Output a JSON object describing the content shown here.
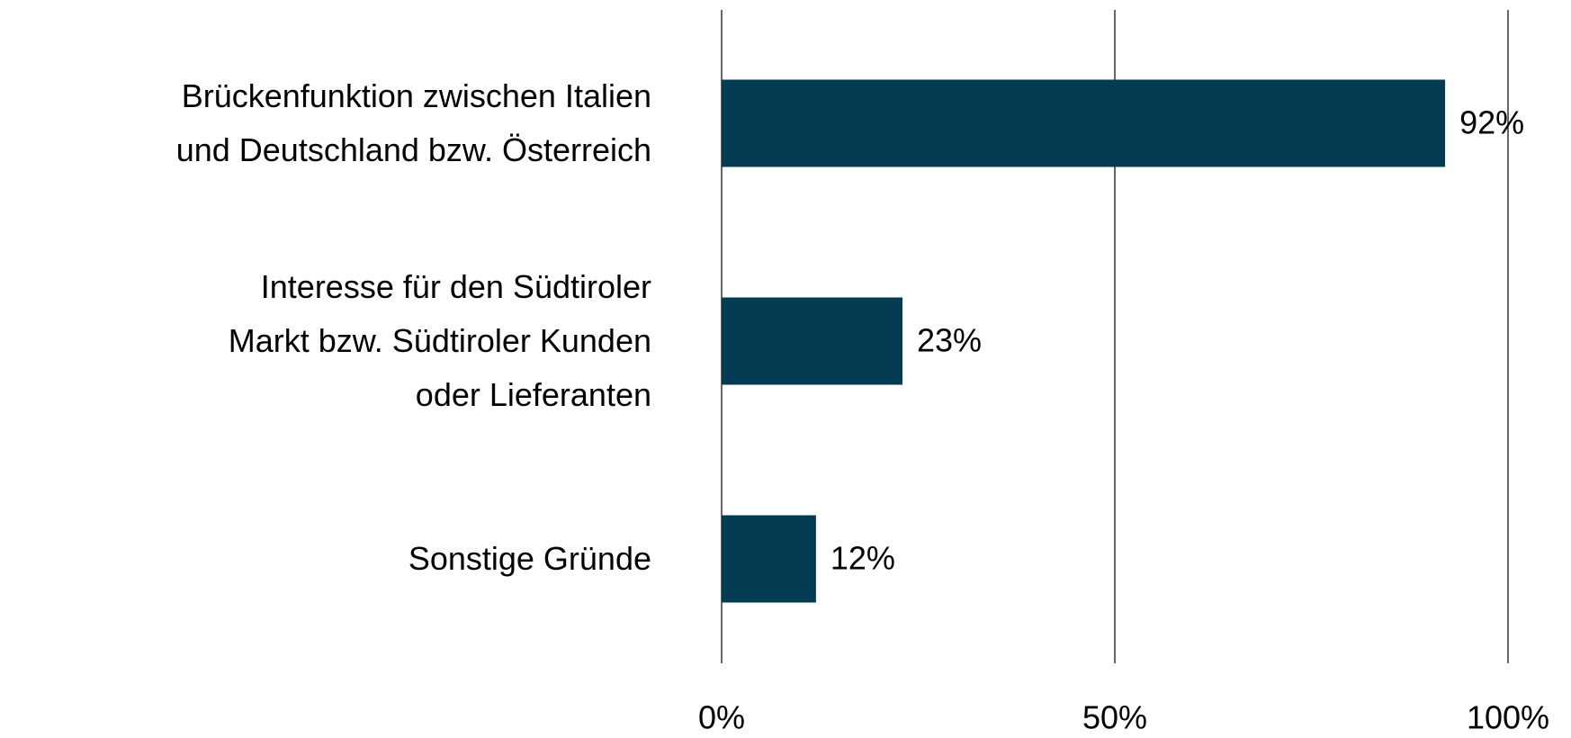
{
  "chart_data": {
    "type": "bar",
    "orientation": "horizontal",
    "categories": [
      "Brückenfunktion zwischen Italien\nund Deutschland bzw. Österreich",
      "Interesse für den Südtiroler\nMarkt bzw. Südtiroler Kunden\noder Lieferanten",
      "Sonstige Gründe"
    ],
    "values": [
      92,
      23,
      12
    ],
    "value_labels": [
      "92%",
      "23%",
      "12%"
    ],
    "color": "#033c52",
    "xlim": [
      0,
      100
    ],
    "xticks": [
      {
        "value": 0,
        "label": "0%"
      },
      {
        "value": 50,
        "label": "50%"
      },
      {
        "value": 100,
        "label": "100%"
      }
    ],
    "grid": true
  }
}
